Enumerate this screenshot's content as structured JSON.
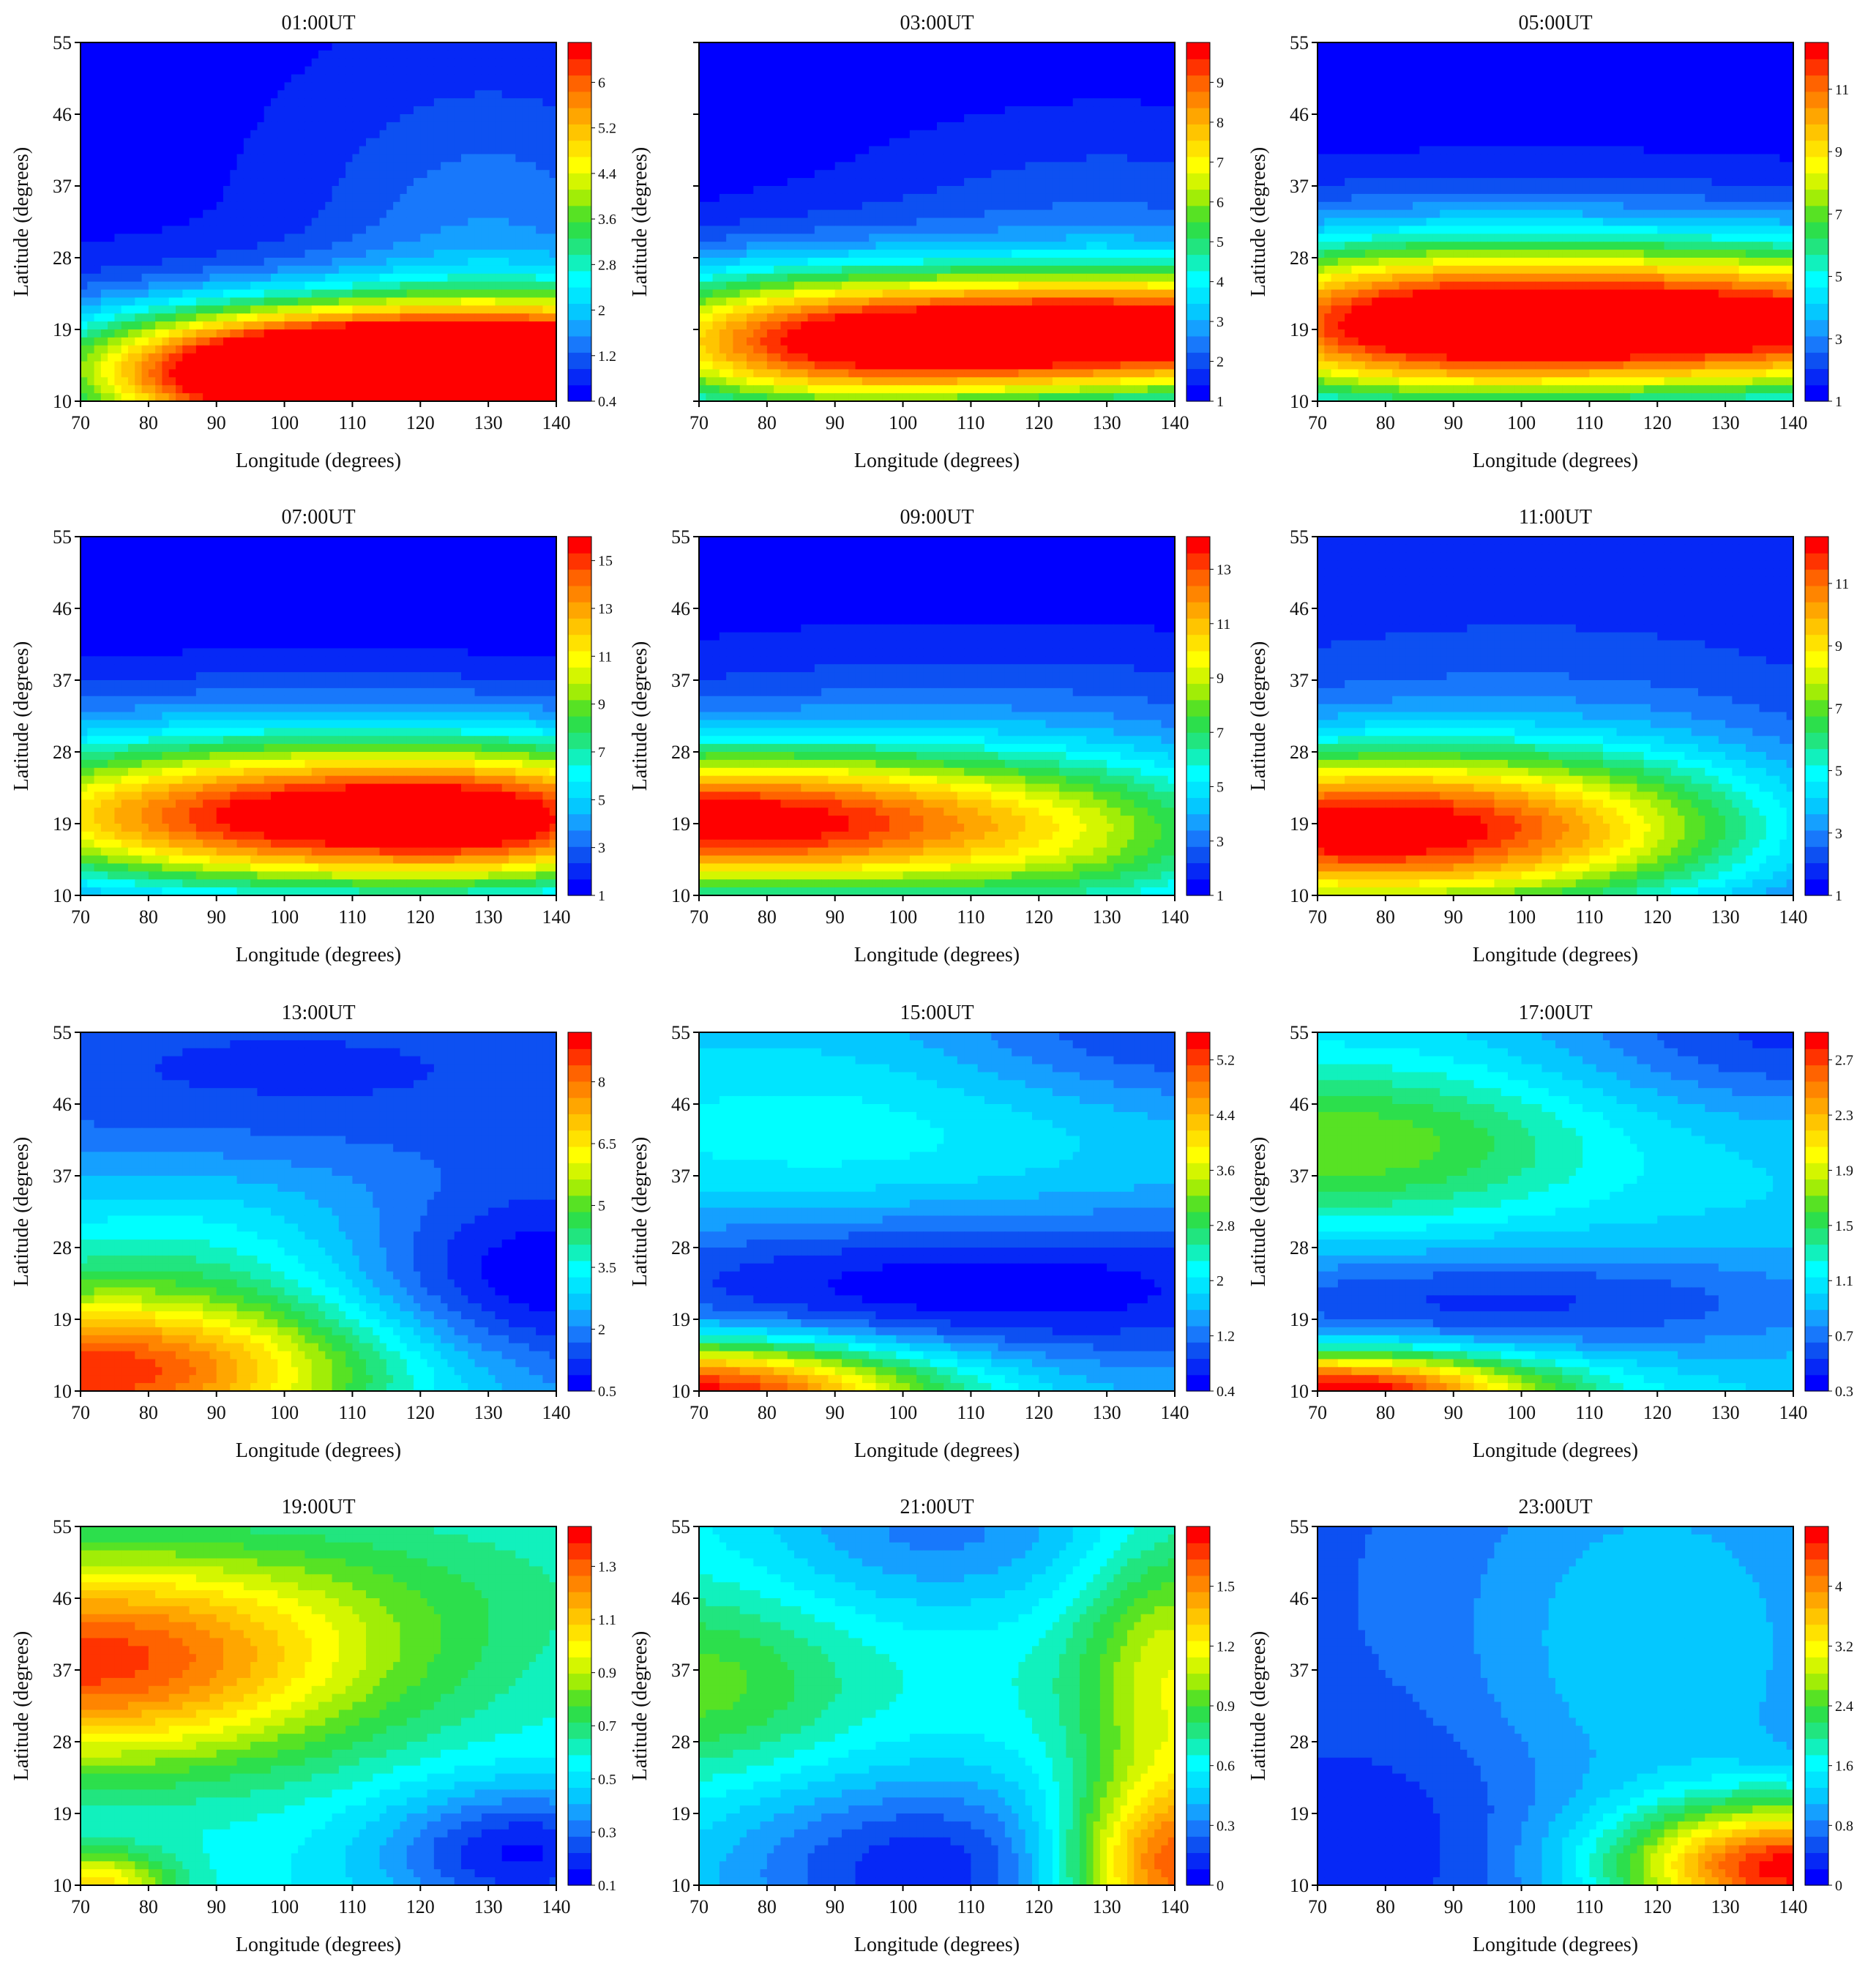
{
  "figure": {
    "xlabel": "Longitude (degrees)",
    "ylabel": "Latitude (degrees)"
  },
  "colors": {
    "scale": [
      "#0000ff",
      "#0a46f0",
      "#1e8cff",
      "#00d2ff",
      "#00ffff",
      "#1ee68c",
      "#32dc32",
      "#b4f000",
      "#ffff00",
      "#ffcd00",
      "#ff9600",
      "#ff5a00",
      "#ff0000"
    ]
  },
  "chart_data": [
    {
      "type": "heatmap",
      "title": "01:00UT",
      "xlabel": "Longitude (degrees)",
      "ylabel": "Latitude (degrees)",
      "xlim": [
        70,
        140
      ],
      "ylim": [
        10,
        55
      ],
      "xticks": [
        "70",
        "80",
        "90",
        "100",
        "110",
        "120",
        "130",
        "140"
      ],
      "yticks": [
        "10",
        "19",
        "28",
        "37",
        "46",
        "55"
      ],
      "colorbar": {
        "min": 0.4,
        "max": 6.7,
        "ticks": [
          0.4,
          1.2,
          2,
          2.8,
          3.6,
          4.4,
          5.2,
          6
        ],
        "labels": [
          "0.4",
          "1.2",
          "2",
          "2.8",
          "3.6",
          "4.4",
          "5.2",
          "6"
        ]
      },
      "background": 0.6,
      "blobs": [
        [
          140,
          14.5,
          6.4,
          45,
          6
        ],
        [
          112,
          13.5,
          3.0,
          24,
          5
        ],
        [
          92,
          12,
          1.8,
          16,
          6
        ],
        [
          130,
          30,
          0.9,
          18,
          14
        ]
      ]
    },
    {
      "type": "heatmap",
      "title": "03:00UT",
      "xlabel": "Longitude (degrees)",
      "ylabel": "Latitude (degrees)",
      "xlim": [
        70,
        140
      ],
      "ylim": [
        10,
        55
      ],
      "xticks": [
        "70",
        "80",
        "90",
        "100",
        "110",
        "120",
        "130",
        "140"
      ],
      "yticks": [],
      "colorbar": {
        "min": 1,
        "max": 10,
        "ticks": [
          1,
          2,
          3,
          4,
          5,
          6,
          7,
          8,
          9
        ],
        "labels": [
          "1",
          "2",
          "3",
          "4",
          "5",
          "6",
          "7",
          "8",
          "9"
        ]
      },
      "background": 1.0,
      "blobs": [
        [
          140,
          18.5,
          8.6,
          42,
          5.5
        ],
        [
          95,
          16,
          3.6,
          25,
          6
        ],
        [
          75,
          18,
          2.2,
          20,
          8
        ],
        [
          130,
          30,
          1.2,
          30,
          12
        ]
      ]
    },
    {
      "type": "heatmap",
      "title": "05:00UT",
      "xlabel": "Longitude (degrees)",
      "ylabel": "Latitude (degrees)",
      "xlim": [
        70,
        140
      ],
      "ylim": [
        10,
        55
      ],
      "xticks": [
        "70",
        "80",
        "90",
        "100",
        "110",
        "120",
        "130",
        "140"
      ],
      "yticks": [
        "10",
        "19",
        "28",
        "37",
        "46",
        "55"
      ],
      "colorbar": {
        "min": 1,
        "max": 12.5,
        "ticks": [
          1,
          3,
          5,
          7,
          9,
          11
        ],
        "labels": [
          "1",
          "3",
          "5",
          "7",
          "9",
          "11"
        ]
      },
      "background": 1.0,
      "blobs": [
        [
          128,
          19.5,
          11.2,
          48,
          6.5
        ],
        [
          80,
          19,
          4.5,
          25,
          7.5
        ],
        [
          105,
          28,
          1.5,
          50,
          9
        ]
      ]
    },
    {
      "type": "heatmap",
      "title": "07:00UT",
      "xlabel": "Longitude (degrees)",
      "ylabel": "Latitude (degrees)",
      "xlim": [
        70,
        140
      ],
      "ylim": [
        10,
        55
      ],
      "xticks": [
        "70",
        "80",
        "90",
        "100",
        "110",
        "120",
        "130",
        "140"
      ],
      "yticks": [
        "10",
        "19",
        "28",
        "37",
        "46",
        "55"
      ],
      "colorbar": {
        "min": 1,
        "max": 16,
        "ticks": [
          1,
          3,
          5,
          7,
          9,
          11,
          13,
          15
        ],
        "labels": [
          "1",
          "3",
          "5",
          "7",
          "9",
          "11",
          "13",
          "15"
        ]
      },
      "background": 1.0,
      "blobs": [
        [
          105,
          19.5,
          14.5,
          40,
          6.5
        ],
        [
          135,
          19,
          4.0,
          18,
          6
        ],
        [
          105,
          30,
          2.0,
          60,
          7
        ]
      ]
    },
    {
      "type": "heatmap",
      "title": "09:00UT",
      "xlabel": "Longitude (degrees)",
      "ylabel": "Latitude (degrees)",
      "xlim": [
        70,
        140
      ],
      "ylim": [
        10,
        55
      ],
      "xticks": [
        "70",
        "80",
        "90",
        "100",
        "110",
        "120",
        "130",
        "140"
      ],
      "yticks": [
        "10",
        "19",
        "28",
        "37",
        "46",
        "55"
      ],
      "colorbar": {
        "min": 1,
        "max": 14.2,
        "ticks": [
          1,
          3,
          5,
          7,
          9,
          11,
          13
        ],
        "labels": [
          "1",
          "3",
          "5",
          "7",
          "9",
          "11",
          "13"
        ]
      },
      "background": 1.0,
      "blobs": [
        [
          70,
          19,
          13.0,
          38,
          6.5
        ],
        [
          130,
          15,
          4.0,
          25,
          9
        ],
        [
          110,
          32,
          1.5,
          50,
          9
        ]
      ]
    },
    {
      "type": "heatmap",
      "title": "11:00UT",
      "xlabel": "Longitude (degrees)",
      "ylabel": "Latitude (degrees)",
      "xlim": [
        70,
        140
      ],
      "ylim": [
        10,
        55
      ],
      "xticks": [
        "70",
        "80",
        "90",
        "100",
        "110",
        "120",
        "130",
        "140"
      ],
      "yticks": [
        "10",
        "19",
        "28",
        "37",
        "46",
        "55"
      ],
      "colorbar": {
        "min": 1,
        "max": 12.5,
        "ticks": [
          1,
          3,
          5,
          7,
          9,
          11
        ],
        "labels": [
          "1",
          "3",
          "5",
          "7",
          "9",
          "11"
        ]
      },
      "background": 1.5,
      "blobs": [
        [
          70,
          18,
          10.0,
          33,
          7
        ],
        [
          112,
          18,
          3.0,
          25,
          8
        ],
        [
          100,
          30,
          1.0,
          40,
          12
        ]
      ]
    },
    {
      "type": "heatmap",
      "title": "13:00UT",
      "xlabel": "Longitude (degrees)",
      "ylabel": "Latitude (degrees)",
      "xlim": [
        70,
        140
      ],
      "ylim": [
        10,
        55
      ],
      "xticks": [
        "70",
        "80",
        "90",
        "100",
        "110",
        "120",
        "130",
        "140"
      ],
      "yticks": [
        "10",
        "19",
        "28",
        "37",
        "46",
        "55"
      ],
      "colorbar": {
        "min": 0.5,
        "max": 9.2,
        "ticks": [
          0.5,
          2,
          3.5,
          5,
          6.5,
          8
        ],
        "labels": [
          "0.5",
          "2",
          "3.5",
          "5",
          "6.5",
          "8"
        ]
      },
      "background": 2.0,
      "blobs": [
        [
          72,
          12,
          6.5,
          30,
          7
        ],
        [
          85,
          27,
          1.5,
          28,
          8
        ],
        [
          135,
          24,
          -1.8,
          20,
          8
        ],
        [
          100,
          50,
          -0.8,
          45,
          8
        ]
      ]
    },
    {
      "type": "heatmap",
      "title": "15:00UT",
      "xlabel": "Longitude (degrees)",
      "ylabel": "Latitude (degrees)",
      "xlim": [
        70,
        140
      ],
      "ylim": [
        10,
        55
      ],
      "xticks": [
        "70",
        "80",
        "90",
        "100",
        "110",
        "120",
        "130",
        "140"
      ],
      "yticks": [
        "10",
        "19",
        "28",
        "37",
        "46",
        "55"
      ],
      "colorbar": {
        "min": 0.4,
        "max": 5.6,
        "ticks": [
          0.4,
          1.2,
          2,
          2.8,
          3.6,
          4.4,
          5.2
        ],
        "labels": [
          "0.4",
          "1.2",
          "2",
          "2.8",
          "3.6",
          "4.4",
          "5.2"
        ]
      },
      "background": 1.6,
      "blobs": [
        [
          70,
          10,
          4.0,
          25,
          4.5
        ],
        [
          110,
          23,
          -1.2,
          45,
          7
        ],
        [
          90,
          42,
          0.6,
          35,
          9
        ],
        [
          140,
          55,
          -0.8,
          25,
          7
        ]
      ]
    },
    {
      "type": "heatmap",
      "title": "17:00UT",
      "xlabel": "Longitude (degrees)",
      "ylabel": "Latitude (degrees)",
      "xlim": [
        70,
        140
      ],
      "ylim": [
        10,
        55
      ],
      "xticks": [
        "70",
        "80",
        "90",
        "100",
        "110",
        "120",
        "130",
        "140"
      ],
      "yticks": [
        "10",
        "19",
        "28",
        "37",
        "46",
        "55"
      ],
      "colorbar": {
        "min": 0.3,
        "max": 2.9,
        "ticks": [
          0.3,
          0.7,
          1.1,
          1.5,
          1.9,
          2.3,
          2.7
        ],
        "labels": [
          "0.3",
          "0.7",
          "1.1",
          "1.5",
          "1.9",
          "2.3",
          "2.7"
        ]
      },
      "background": 1.0,
      "blobs": [
        [
          72,
          10,
          2.0,
          22,
          3.5
        ],
        [
          75,
          41,
          0.7,
          25,
          7
        ],
        [
          95,
          21,
          -0.5,
          40,
          5
        ],
        [
          140,
          55,
          -0.5,
          25,
          7
        ]
      ]
    },
    {
      "type": "heatmap",
      "title": "19:00UT",
      "xlabel": "Longitude (degrees)",
      "ylabel": "Latitude (degrees)",
      "xlim": [
        70,
        140
      ],
      "ylim": [
        10,
        55
      ],
      "xticks": [
        "70",
        "80",
        "90",
        "100",
        "110",
        "120",
        "130",
        "140"
      ],
      "yticks": [
        "10",
        "19",
        "28",
        "37",
        "46",
        "55"
      ],
      "colorbar": {
        "min": 0.1,
        "max": 1.45,
        "ticks": [
          0.1,
          0.3,
          0.5,
          0.7,
          0.9,
          1.1,
          1.3
        ],
        "labels": [
          "0.1",
          "0.3",
          "0.5",
          "0.7",
          "0.9",
          "1.1",
          "1.3"
        ]
      },
      "background": 0.55,
      "blobs": [
        [
          70,
          38,
          0.8,
          30,
          9
        ],
        [
          135,
          14,
          -0.4,
          15,
          6
        ],
        [
          72,
          10,
          0.5,
          8,
          3
        ],
        [
          115,
          48,
          0.1,
          30,
          8
        ]
      ]
    },
    {
      "type": "heatmap",
      "title": "21:00UT",
      "xlabel": "Longitude (degrees)",
      "ylabel": "Latitude (degrees)",
      "xlim": [
        70,
        140
      ],
      "ylim": [
        10,
        55
      ],
      "xticks": [
        "70",
        "80",
        "90",
        "100",
        "110",
        "120",
        "130",
        "140"
      ],
      "yticks": [
        "10",
        "19",
        "28",
        "37",
        "46",
        "55"
      ],
      "colorbar": {
        "min": 0,
        "max": 1.8,
        "ticks": [
          0,
          0.3,
          0.6,
          0.9,
          1.2,
          1.5
        ],
        "labels": [
          "0",
          "0.3",
          "0.6",
          "0.9",
          "1.2",
          "1.5"
        ]
      },
      "background": 0.65,
      "blobs": [
        [
          140,
          12,
          1.1,
          12,
          8
        ],
        [
          140,
          36,
          0.5,
          10,
          12
        ],
        [
          70,
          35,
          0.3,
          15,
          8
        ],
        [
          105,
          12,
          -0.55,
          25,
          9
        ],
        [
          105,
          55,
          -0.35,
          20,
          8
        ]
      ]
    },
    {
      "type": "heatmap",
      "title": "23:00UT",
      "xlabel": "Longitude (degrees)",
      "ylabel": "Latitude (degrees)",
      "xlim": [
        70,
        140
      ],
      "ylim": [
        10,
        55
      ],
      "xticks": [
        "70",
        "80",
        "90",
        "100",
        "110",
        "120",
        "130",
        "140"
      ],
      "yticks": [
        "10",
        "19",
        "28",
        "37",
        "46",
        "55"
      ],
      "colorbar": {
        "min": 0,
        "max": 4.8,
        "ticks": [
          0,
          0.8,
          1.6,
          2.4,
          3.2,
          4
        ],
        "labels": [
          "0",
          "0.8",
          "1.6",
          "2.4",
          "3.2",
          "4"
        ]
      },
      "background": 0.6,
      "blobs": [
        [
          140,
          12,
          4.0,
          18,
          6
        ],
        [
          120,
          40,
          0.7,
          20,
          18
        ],
        [
          78,
          16,
          -0.35,
          18,
          10
        ]
      ]
    }
  ]
}
